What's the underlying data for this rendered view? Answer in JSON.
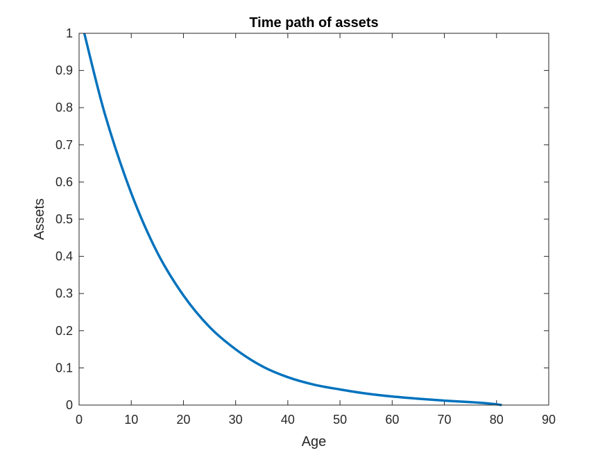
{
  "chart_data": {
    "type": "line",
    "title": "Time path of assets",
    "xlabel": "Age",
    "ylabel": "Assets",
    "xlim": [
      0,
      90
    ],
    "ylim": [
      0,
      1
    ],
    "xticks": [
      "0",
      "10",
      "20",
      "30",
      "40",
      "50",
      "60",
      "70",
      "80",
      "90"
    ],
    "yticks": [
      "0",
      "0.1",
      "0.2",
      "0.3",
      "0.4",
      "0.5",
      "0.6",
      "0.7",
      "0.8",
      "0.9",
      "1"
    ],
    "grid": false,
    "line_color": "#0072BD",
    "series": [
      {
        "x": [
          1,
          5,
          10,
          15,
          20,
          25,
          30,
          35,
          40,
          45,
          50,
          55,
          60,
          65,
          70,
          75,
          78,
          80,
          81
        ],
        "y": [
          1.0,
          0.78,
          0.57,
          0.41,
          0.295,
          0.21,
          0.15,
          0.105,
          0.075,
          0.055,
          0.042,
          0.031,
          0.023,
          0.017,
          0.012,
          0.008,
          0.005,
          0.002,
          0.0
        ]
      }
    ]
  }
}
